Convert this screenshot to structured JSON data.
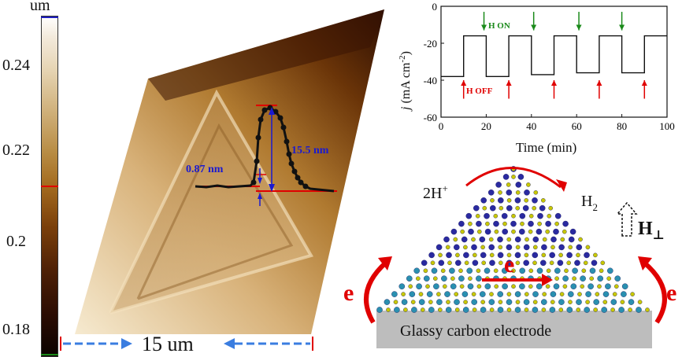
{
  "colorbar": {
    "unit": "um",
    "ticks": [
      "0.24",
      "0.22",
      "0.2",
      "0.18"
    ]
  },
  "afm": {
    "scale_label": "15 um",
    "step_label": "0.87 nm",
    "peak_label": "15.5 nm",
    "colors": {
      "profile": "#111111",
      "annotation": "#1a1ad0",
      "marker": "#e00000",
      "scale_arrow": "#3a7de0"
    }
  },
  "chart_data": {
    "type": "line",
    "xlabel": "Time (min)",
    "ylabel_main": "j",
    "ylabel_unit": "(mA cm",
    "ylabel_exp": "-2",
    "ylabel_close": ")",
    "xlim": [
      0,
      100
    ],
    "ylim": [
      -60,
      0
    ],
    "xticks": [
      0,
      20,
      40,
      60,
      80,
      100
    ],
    "yticks": [
      0,
      -20,
      -40,
      -60
    ],
    "series": [
      {
        "x": [
          0,
          10,
          10,
          20,
          20,
          30,
          30,
          40,
          40,
          50,
          50,
          60,
          60,
          70,
          70,
          80,
          80,
          90,
          90,
          100
        ],
        "y": [
          -38,
          -38,
          -16,
          -16,
          -38,
          -38,
          -16,
          -16,
          -37,
          -37,
          -16,
          -16,
          -36,
          -36,
          -16,
          -16,
          -36,
          -36,
          -16,
          -16
        ]
      }
    ],
    "annotations": {
      "on_label": "H ON",
      "off_label": "H OFF",
      "on_arrows_x": [
        19,
        41,
        61,
        80
      ],
      "off_arrows_x": [
        10,
        30,
        50,
        70,
        90
      ],
      "on_color": "#1a8a1a",
      "off_color": "#e00000"
    }
  },
  "schematic": {
    "proton_label": "2H",
    "proton_sup": "+",
    "h2_label": "H",
    "h2_sub": "2",
    "field_label": "H",
    "field_sub": "⊥",
    "electron_label": "e",
    "electrode_label": "Glassy carbon electrode",
    "colors": {
      "electron": "#e00000",
      "electrode": "#bdbdbd",
      "atom_blue": "#2a2aa0",
      "atom_yellow": "#c8c800",
      "atom_teal": "#2a90b0"
    }
  }
}
